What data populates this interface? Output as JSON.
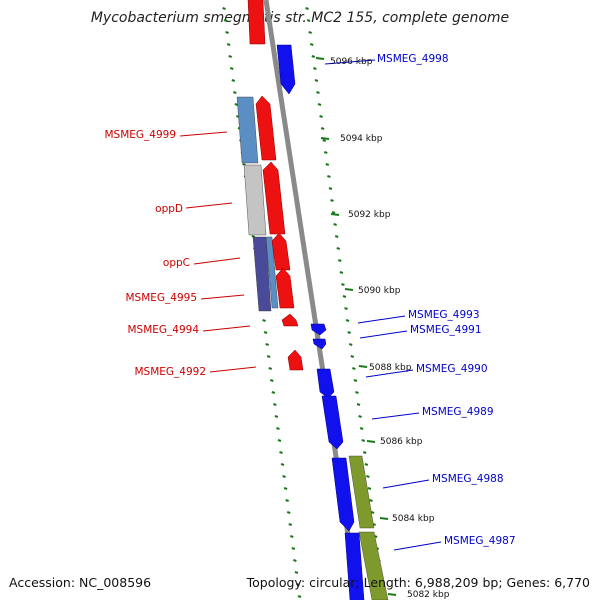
{
  "title": "Mycobacterium smegmatis str. MC2 155, complete genome",
  "footer": {
    "accession": "Accession: NC_008596",
    "topology": "Topology: circular; Length: 6,988,209 bp; Genes: 6,770"
  },
  "colors": {
    "forward_strand": "#ee1111",
    "reverse_strand": "#1111ee",
    "forward_label": "#cc0000",
    "reverse_label": "#0000cc",
    "backbone": "#8a8a8a",
    "ticks": "#1a7a1a",
    "cog_steelblue": "#5b8fc4",
    "cog_gray": "#c4c4c4",
    "cog_purple": "#4a4a9a",
    "cog_olive": "#7f9a2c"
  },
  "scale_labels": [
    "5096 kbp",
    "5094 kbp",
    "5092 kbp",
    "5090 kbp",
    "5088 kbp",
    "5086 kbp",
    "5084 kbp",
    "5082 kbp"
  ],
  "gene_labels": {
    "forward": [
      "MSMEG_4999",
      "oppD",
      "oppC",
      "MSMEG_4995",
      "MSMEG_4994",
      "MSMEG_4992"
    ],
    "reverse": [
      "MSMEG_4998",
      "MSMEG_4993",
      "MSMEG_4991",
      "MSMEG_4990",
      "MSMEG_4989",
      "MSMEG_4988",
      "MSMEG_4987"
    ]
  }
}
